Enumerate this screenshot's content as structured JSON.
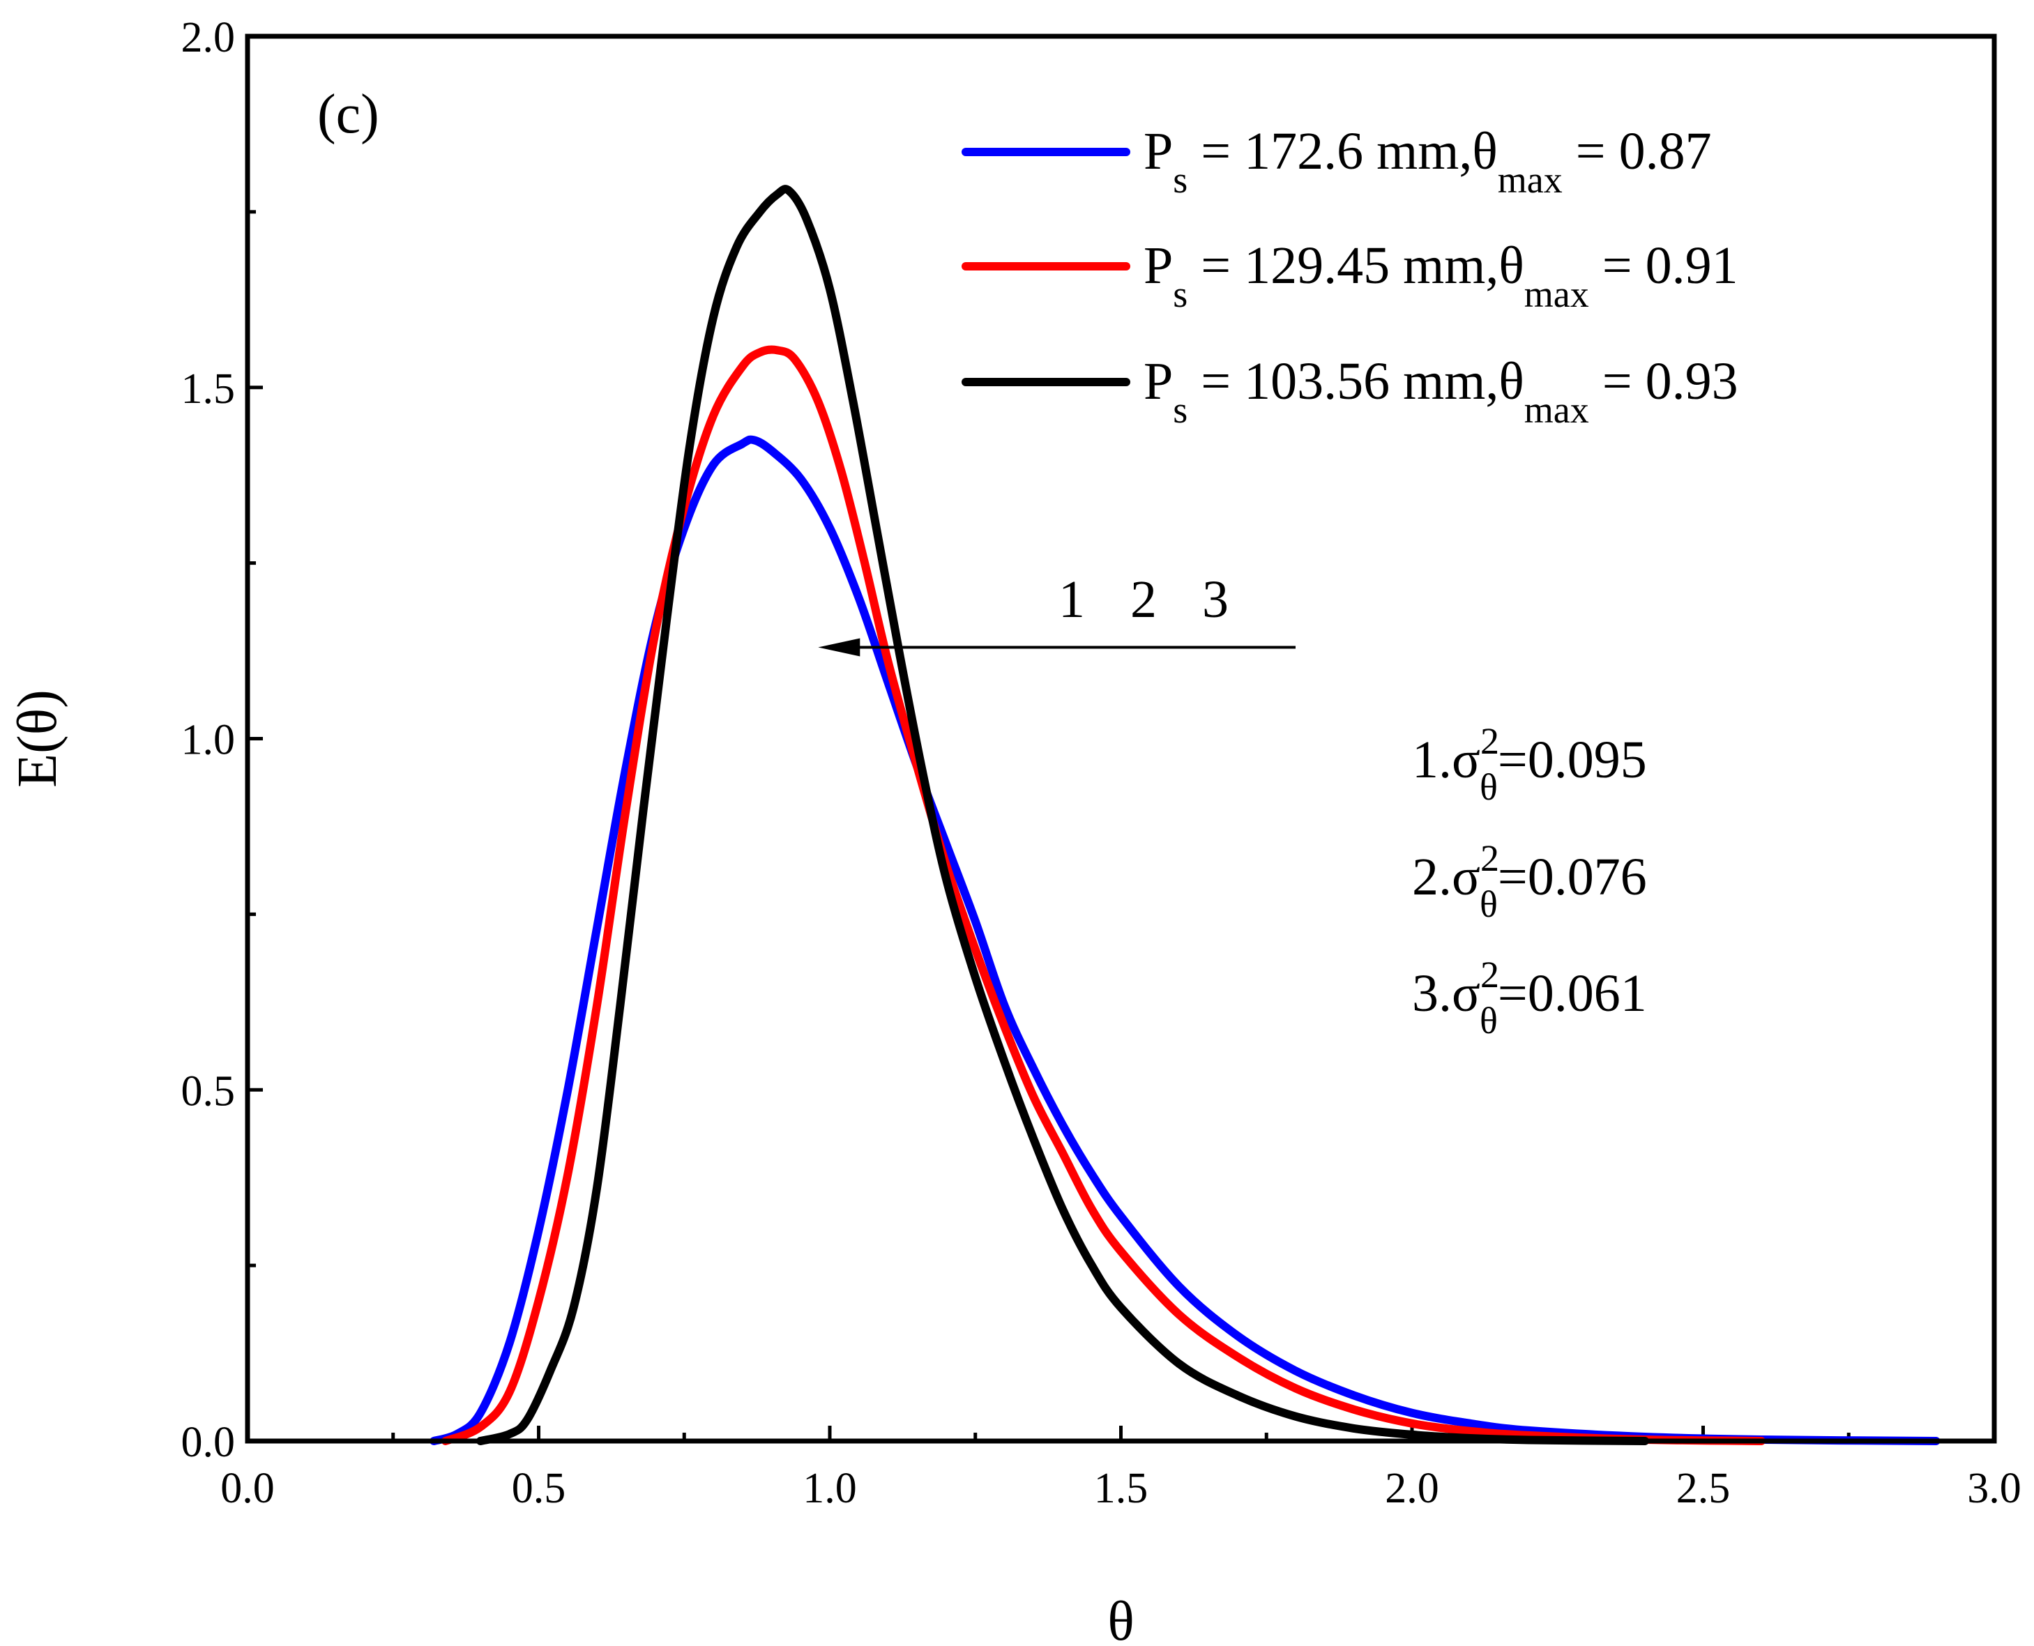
{
  "chart_data": {
    "type": "line",
    "panel_label": "(c)",
    "xlabel": "θ",
    "ylabel": "E(θ)",
    "xlim": [
      0,
      3
    ],
    "ylim": [
      0,
      2
    ],
    "x_ticks": [
      0,
      0.5,
      1,
      1.5,
      2,
      2.5,
      3
    ],
    "x_tick_labels": [
      "0.0",
      "0.5",
      "1.0",
      "1.5",
      "2.0",
      "2.5",
      "3.0"
    ],
    "y_ticks": [
      0,
      0.5,
      1,
      1.5,
      2
    ],
    "y_tick_labels": [
      "0.0",
      "0.5",
      "1.0",
      "1.5",
      "2.0"
    ],
    "x_minor_ticks": [
      0.25,
      0.75,
      1.25,
      1.75,
      2.25,
      2.75
    ],
    "y_minor_ticks": [
      0.25,
      0.75,
      1.25,
      1.75
    ],
    "legend_position": "top-right",
    "series": [
      {
        "name": "1",
        "color": "#0000ff",
        "legend": {
          "prefix": "P",
          "prefix_sub": "s",
          "mid": " = 172.6 mm,θ",
          "mid_sub": "max",
          "suffix": " = 0.87"
        },
        "x": [
          0.32,
          0.36,
          0.4,
          0.45,
          0.5,
          0.55,
          0.6,
          0.65,
          0.7,
          0.75,
          0.8,
          0.85,
          0.87,
          0.9,
          0.95,
          1.0,
          1.05,
          1.1,
          1.15,
          1.2,
          1.25,
          1.3,
          1.35,
          1.4,
          1.45,
          1.5,
          1.6,
          1.7,
          1.8,
          1.9,
          2.0,
          2.1,
          2.2,
          2.4,
          2.6,
          2.9
        ],
        "y": [
          0.0,
          0.01,
          0.04,
          0.14,
          0.3,
          0.5,
          0.73,
          0.96,
          1.16,
          1.3,
          1.39,
          1.42,
          1.425,
          1.41,
          1.37,
          1.3,
          1.2,
          1.08,
          0.96,
          0.85,
          0.74,
          0.62,
          0.53,
          0.45,
          0.38,
          0.32,
          0.22,
          0.15,
          0.1,
          0.065,
          0.04,
          0.025,
          0.015,
          0.006,
          0.002,
          0.0
        ]
      },
      {
        "name": "2",
        "color": "#ff0000",
        "legend": {
          "prefix": "P",
          "prefix_sub": "s",
          "mid": " = 129.45 mm,θ",
          "mid_sub": "max",
          "suffix": " = 0.91"
        },
        "x": [
          0.34,
          0.4,
          0.45,
          0.5,
          0.55,
          0.6,
          0.65,
          0.7,
          0.75,
          0.8,
          0.85,
          0.88,
          0.91,
          0.94,
          0.98,
          1.02,
          1.06,
          1.1,
          1.15,
          1.2,
          1.25,
          1.3,
          1.35,
          1.4,
          1.45,
          1.5,
          1.6,
          1.7,
          1.8,
          1.9,
          2.0,
          2.1,
          2.2,
          2.4,
          2.6
        ],
        "y": [
          0.0,
          0.02,
          0.07,
          0.2,
          0.38,
          0.62,
          0.9,
          1.15,
          1.33,
          1.46,
          1.53,
          1.55,
          1.553,
          1.54,
          1.48,
          1.38,
          1.25,
          1.11,
          0.96,
          0.82,
          0.7,
          0.59,
          0.49,
          0.41,
          0.33,
          0.27,
          0.18,
          0.12,
          0.075,
          0.045,
          0.025,
          0.014,
          0.008,
          0.002,
          0.0
        ]
      },
      {
        "name": "3",
        "color": "#000000",
        "legend": {
          "prefix": "P",
          "prefix_sub": "s",
          "mid": " = 103.56 mm,θ",
          "mid_sub": "max",
          "suffix": " = 0.93"
        },
        "x": [
          0.4,
          0.45,
          0.48,
          0.52,
          0.56,
          0.6,
          0.64,
          0.68,
          0.72,
          0.76,
          0.8,
          0.84,
          0.88,
          0.91,
          0.93,
          0.96,
          1.0,
          1.04,
          1.08,
          1.12,
          1.16,
          1.2,
          1.25,
          1.3,
          1.35,
          1.4,
          1.45,
          1.5,
          1.6,
          1.7,
          1.8,
          1.9,
          2.0,
          2.1,
          2.2,
          2.4
        ],
        "y": [
          0.0,
          0.01,
          0.03,
          0.1,
          0.19,
          0.36,
          0.62,
          0.9,
          1.17,
          1.42,
          1.6,
          1.7,
          1.75,
          1.775,
          1.78,
          1.74,
          1.64,
          1.48,
          1.3,
          1.12,
          0.95,
          0.8,
          0.66,
          0.54,
          0.43,
          0.33,
          0.25,
          0.19,
          0.11,
          0.065,
          0.035,
          0.018,
          0.009,
          0.004,
          0.0015,
          0.0
        ]
      }
    ],
    "arrow": {
      "x_start": 1.8,
      "x_end": 0.98,
      "y": 1.13
    },
    "arrow_labels": [
      "1",
      "2",
      "3"
    ],
    "variance_annotations": [
      {
        "prefix": "1.σ",
        "sup": "2",
        "sub": "θ",
        "suffix": "=0.095"
      },
      {
        "prefix": "2.σ",
        "sup": "2",
        "sub": "θ",
        "suffix": "=0.076"
      },
      {
        "prefix": "3.σ",
        "sup": "2",
        "sub": "θ",
        "suffix": "=0.061"
      }
    ]
  }
}
